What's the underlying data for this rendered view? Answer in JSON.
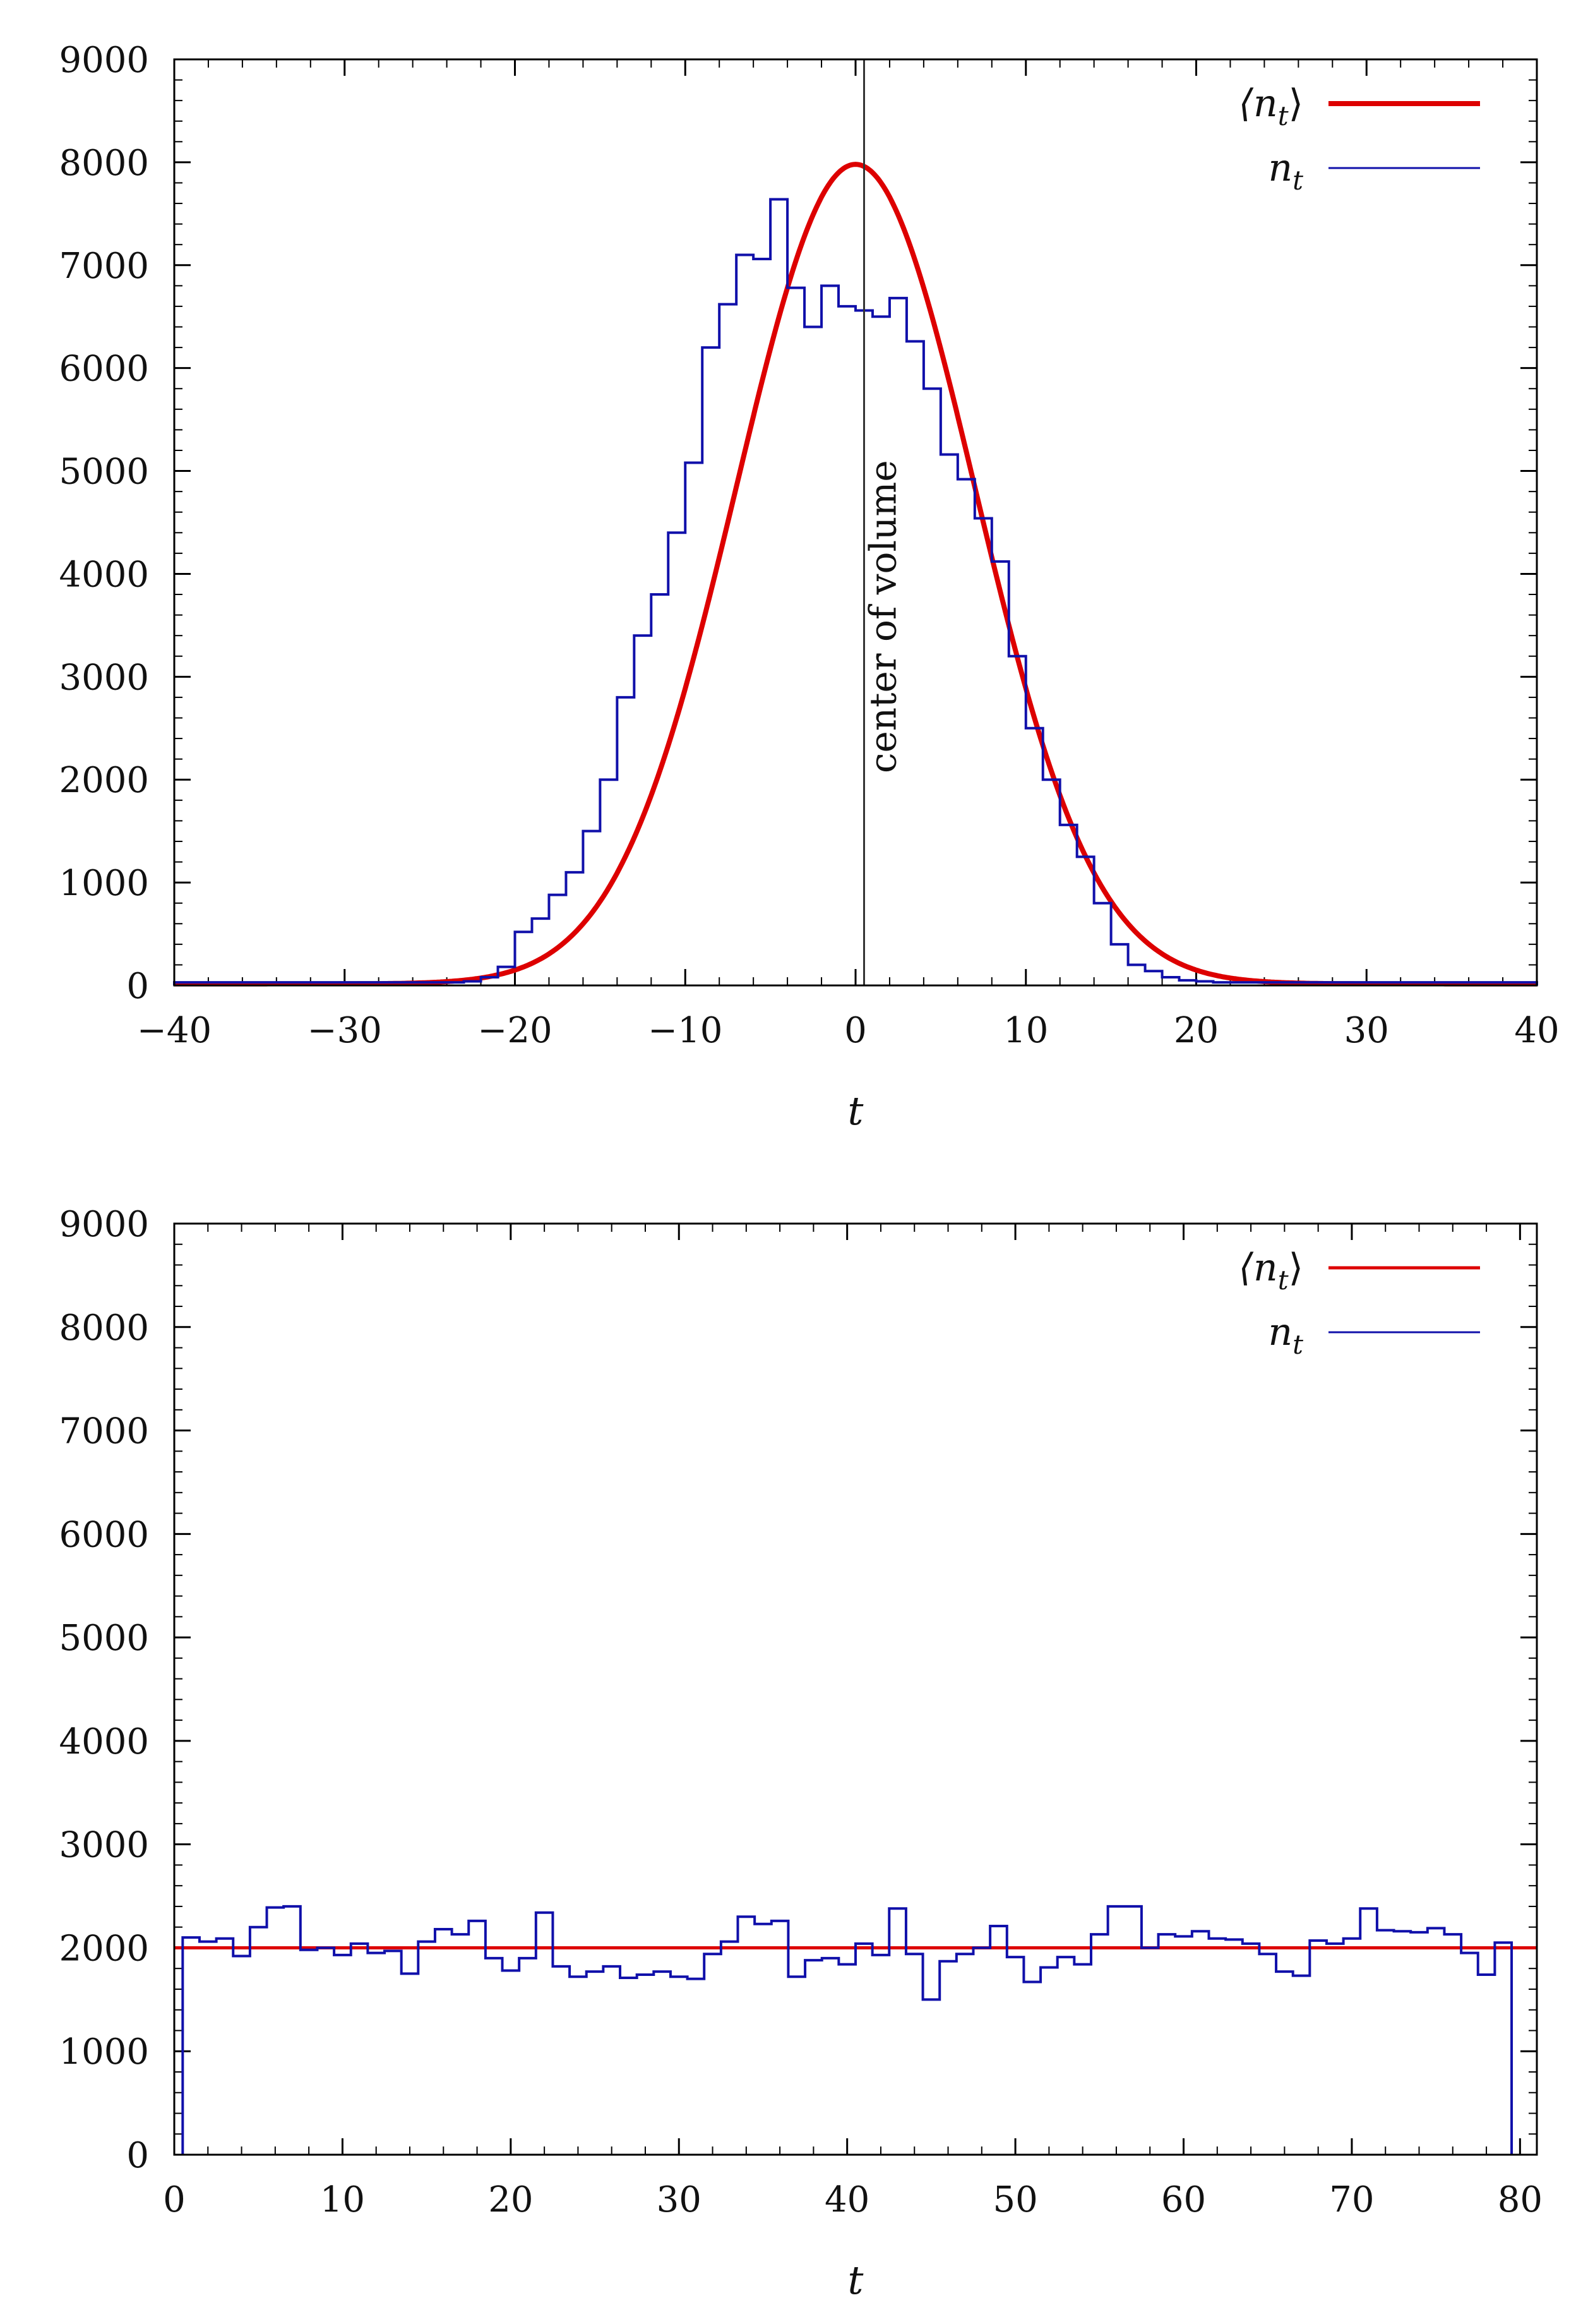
{
  "chart_data": [
    {
      "type": "line",
      "title": "",
      "xlabel": "t",
      "ylabel": "",
      "xlim": [
        -40,
        40
      ],
      "ylim": [
        0,
        9000
      ],
      "xticks": [
        -40,
        -30,
        -20,
        -10,
        0,
        10,
        20,
        30,
        40
      ],
      "xtick_labels": [
        "−40",
        "−30",
        "−20",
        "−10",
        "0",
        "10",
        "20",
        "30",
        "40"
      ],
      "yticks": [
        0,
        1000,
        2000,
        3000,
        4000,
        5000,
        6000,
        7000,
        8000,
        9000
      ],
      "ytick_labels": [
        "0",
        "1000",
        "2000",
        "3000",
        "4000",
        "5000",
        "6000",
        "7000",
        "8000",
        "9000"
      ],
      "grid": false,
      "legend": "top-right",
      "vline": {
        "x": 0.5,
        "label": "center of volume"
      },
      "series": [
        {
          "name": "⟨n_t⟩",
          "label_main": "⟨n",
          "label_sub": "t",
          "label_close": "⟩",
          "kind": "curve",
          "color": "#dd0000",
          "gaussian": {
            "amplitude": 7980,
            "center": 0,
            "sigma": 7.0,
            "floor": 15
          }
        },
        {
          "name": "n_t",
          "label_main": "n",
          "label_sub": "t",
          "label_close": "",
          "kind": "step",
          "color": "#1010aa",
          "bin_start": -40,
          "bin_width": 1,
          "values": [
            30,
            30,
            30,
            30,
            30,
            30,
            30,
            30,
            30,
            30,
            30,
            30,
            30,
            30,
            30,
            30,
            30,
            40,
            80,
            180,
            520,
            650,
            880,
            1100,
            1500,
            2000,
            2800,
            3400,
            3800,
            4400,
            5080,
            6200,
            6620,
            7100,
            7060,
            7640,
            6780,
            6400,
            6800,
            6600,
            6560,
            6500,
            6680,
            6260,
            5800,
            5160,
            4920,
            4540,
            4120,
            3200,
            2500,
            2000,
            1560,
            1250,
            800,
            400,
            200,
            140,
            80,
            50,
            40,
            30,
            30,
            30,
            30,
            30,
            30,
            30,
            30,
            30,
            30,
            30,
            30,
            30,
            30,
            30,
            30,
            30,
            30,
            30
          ]
        }
      ]
    },
    {
      "type": "line",
      "title": "",
      "xlabel": "t",
      "ylabel": "",
      "xlim": [
        0,
        81
      ],
      "ylim": [
        0,
        9000
      ],
      "xticks": [
        0,
        10,
        20,
        30,
        40,
        50,
        60,
        70,
        80
      ],
      "xtick_labels": [
        "0",
        "10",
        "20",
        "30",
        "40",
        "50",
        "60",
        "70",
        "80"
      ],
      "yticks": [
        0,
        1000,
        2000,
        3000,
        4000,
        5000,
        6000,
        7000,
        8000,
        9000
      ],
      "ytick_labels": [
        "0",
        "1000",
        "2000",
        "3000",
        "4000",
        "5000",
        "6000",
        "7000",
        "8000",
        "9000"
      ],
      "grid": false,
      "legend": "top-right",
      "series": [
        {
          "name": "⟨n_t⟩",
          "label_main": "⟨n",
          "label_sub": "t",
          "label_close": "⟩",
          "kind": "constant",
          "color": "#dd0000",
          "value": 2000
        },
        {
          "name": "n_t",
          "label_main": "n",
          "label_sub": "t",
          "label_close": "",
          "kind": "step",
          "color": "#1010aa",
          "bin_start": 0.5,
          "bin_width": 1,
          "values": [
            2100,
            2060,
            2090,
            1920,
            2200,
            2390,
            2400,
            1980,
            2000,
            1930,
            2040,
            1950,
            1970,
            1750,
            2060,
            2180,
            2130,
            2260,
            1900,
            1780,
            1900,
            2340,
            1820,
            1720,
            1770,
            1820,
            1710,
            1740,
            1770,
            1720,
            1700,
            1940,
            2060,
            2300,
            2230,
            2260,
            1720,
            1880,
            1900,
            1840,
            2040,
            1930,
            2380,
            1940,
            1500,
            1870,
            1940,
            2000,
            2210,
            1910,
            1670,
            1810,
            1910,
            1840,
            2130,
            2400,
            2400,
            2000,
            2130,
            2110,
            2160,
            2090,
            2080,
            2040,
            1940,
            1770,
            1730,
            2070,
            2040,
            2090,
            2380,
            2170,
            2160,
            2150,
            2190,
            2130,
            1950,
            1740,
            2050
          ]
        }
      ]
    }
  ]
}
